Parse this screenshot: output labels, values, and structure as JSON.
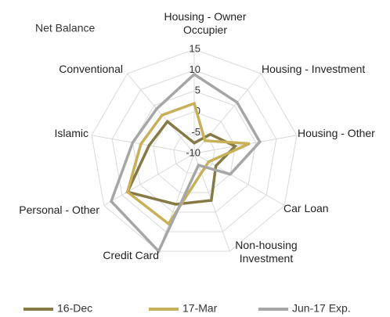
{
  "chart_data": {
    "type": "radar",
    "title": "Net Balance",
    "categories": [
      "Housing - Owner Occupier",
      "Housing - Investment",
      "Housing - Other",
      "Car Loan",
      "Non-housing Investment",
      "Credit Card",
      "Personal - Other",
      "Islamic",
      "Conventional"
    ],
    "series": [
      {
        "name": "16-Dec",
        "color": "#857a45",
        "values": [
          -7.5,
          -4,
          0,
          -4,
          2,
          3,
          8.5,
          1,
          0
        ]
      },
      {
        "name": "17-Mar",
        "color": "#c8b05a",
        "values": [
          2,
          -6,
          3.5,
          -6,
          -5,
          8,
          8.5,
          3,
          2
        ]
      },
      {
        "name": "Jun-17 Exp.",
        "color": "#a6a6a6",
        "values": [
          9,
          6,
          6,
          0,
          -7,
          15,
          13,
          5,
          4
        ]
      }
    ],
    "ylim": [
      -10,
      15
    ],
    "yticks": [
      -10,
      -5,
      0,
      5,
      10,
      15
    ],
    "grid": true,
    "legend": "bottom"
  }
}
